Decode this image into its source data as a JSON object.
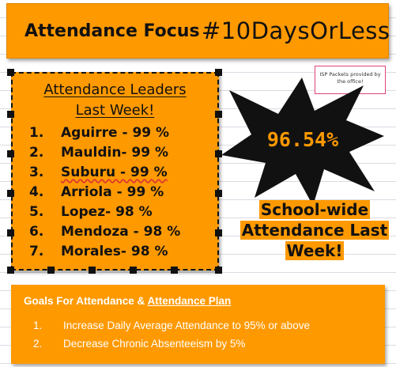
{
  "header": {
    "title": "Attendance Focus",
    "hashtag": "#10DaysOrLess"
  },
  "note": {
    "text": "ISP Packets provided by the office!"
  },
  "leaders": {
    "title_line1": "Attendance Leaders",
    "title_line2": "Last Week!",
    "items": [
      {
        "num": "1.",
        "name": "Aguirre - 99 %"
      },
      {
        "num": "2.",
        "name": "Mauldin- 99 %"
      },
      {
        "num": "3.",
        "name": "Suburu - 99 %"
      },
      {
        "num": "4.",
        "name": "Arriola - 99 %"
      },
      {
        "num": "5.",
        "name": "Lopez- 98 %"
      },
      {
        "num": "6.",
        "name": "Mendoza - 98 %"
      },
      {
        "num": "7.",
        "name": "Morales- 98 %"
      }
    ]
  },
  "star": {
    "value": "96.54%"
  },
  "schoolwide": {
    "line1": "School-wide",
    "line2": "Attendance Last",
    "line3": "Week!"
  },
  "goals": {
    "title_prefix": "Goals For Attendance & ",
    "title_link": "Attendance Plan",
    "items": [
      {
        "num": "1.",
        "text": "Increase Daily Average Attendance to 95% or above"
      },
      {
        "num": "2.",
        "text": "Decrease Chronic Absenteeism by 5%"
      }
    ]
  },
  "colors": {
    "accent": "#ff9900",
    "star_fill": "#111111",
    "note_border": "#e0427a"
  }
}
